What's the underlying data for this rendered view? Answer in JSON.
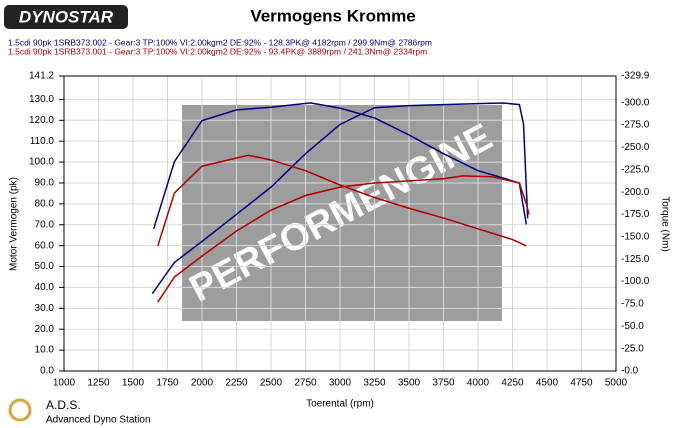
{
  "chart_data": {
    "type": "line",
    "title": "Vermogens Kromme",
    "brand": "DYNOSTAR",
    "runs": [
      {
        "label": "1.5cdi 90pk 1SRB373.002 - Gear:3 TP:100% VI:2.00kgm2 DE:92%   - 128.3PK@ 4182rpm / 299.9Nm@ 2786rpm",
        "color": "#000080"
      },
      {
        "label": "1.5cdi 90pk 1SRB373.001 - Gear:3 TP:100% VI:2.00kgm2 DE:92%   - 93.4PK@ 3889rpm / 241.3Nm@ 2334rpm",
        "color": "#b00000"
      }
    ],
    "watermark": "PERFORMENGINE",
    "x_label": "Toerental (rpm)",
    "y_label": "Motor Vermogen (pk)",
    "y2_label": "Torque (Nm)",
    "footer_title": "A.D.S.",
    "footer_subtitle": "Advanced Dyno Station",
    "xlim": [
      1000,
      5000
    ],
    "xticks": [
      1000,
      1250,
      1500,
      1750,
      2000,
      2250,
      2500,
      2750,
      3000,
      3250,
      3500,
      3750,
      4000,
      4250,
      4500,
      4750,
      5000
    ],
    "ylim": [
      0,
      141.2
    ],
    "yticks": [
      {
        "value": 0,
        "label": "0.0"
      },
      {
        "value": 10,
        "label": "10.0"
      },
      {
        "value": 20,
        "label": "20.0"
      },
      {
        "value": 30,
        "label": "30.0"
      },
      {
        "value": 40,
        "label": "40.0"
      },
      {
        "value": 50,
        "label": "50.0"
      },
      {
        "value": 60,
        "label": "60.0"
      },
      {
        "value": 70,
        "label": "70.0"
      },
      {
        "value": 80,
        "label": "80.0"
      },
      {
        "value": 90,
        "label": "90.0"
      },
      {
        "value": 100,
        "label": "100.0"
      },
      {
        "value": 110,
        "label": "110.0"
      },
      {
        "value": 120,
        "label": "120.0"
      },
      {
        "value": 130,
        "label": "130.0"
      },
      141.2
    ],
    "y2lim": [
      0,
      329.9
    ],
    "y2ticks": [
      {
        "value": 0,
        "label": "-0.0"
      },
      {
        "value": 25,
        "label": "-25.0"
      },
      {
        "value": 50,
        "label": "-50.0"
      },
      {
        "value": 75,
        "label": "-75.0"
      },
      {
        "value": 100,
        "label": "-100.0"
      },
      {
        "value": 125,
        "label": "-125.0"
      },
      {
        "value": 150,
        "label": "-150.0"
      },
      {
        "value": 175,
        "label": "-175.0"
      },
      {
        "value": 200,
        "label": "-200.0"
      },
      {
        "value": 225,
        "label": "-225.0"
      },
      {
        "value": 250,
        "label": "-250.0"
      },
      {
        "value": 275,
        "label": "-275.0"
      },
      {
        "value": 300,
        "label": "-300.0"
      },
      {
        "value": 329.9,
        "label": "-329.9"
      }
    ],
    "grid": true,
    "series": [
      {
        "color": "#000080",
        "axis": "y2",
        "x": [
          1650,
          1800,
          2000,
          2250,
          2500,
          2786,
          3000,
          3250,
          3500,
          3750,
          4000,
          4200,
          4300,
          4350
        ],
        "values": [
          159,
          234,
          280,
          292,
          295,
          299.9,
          294,
          283,
          264,
          243,
          224,
          215,
          210,
          164
        ]
      },
      {
        "color": "#000080",
        "x": [
          1640,
          1800,
          2000,
          2250,
          2500,
          2750,
          3000,
          3250,
          3500,
          3750,
          4000,
          4182,
          4300,
          4330,
          4360
        ],
        "values": [
          37,
          52,
          62,
          75,
          88,
          104,
          118,
          126,
          127,
          127.5,
          128,
          128.3,
          127.5,
          118,
          73
        ]
      },
      {
        "color": "#b00000",
        "axis": "y2",
        "x": [
          1680,
          1800,
          2000,
          2334,
          2500,
          2750,
          3000,
          3250,
          3500,
          3750,
          4000,
          4250,
          4350
        ],
        "values": [
          140,
          199,
          229,
          241.3,
          236,
          224,
          208,
          194,
          182,
          171,
          159,
          147,
          140
        ]
      },
      {
        "color": "#b00000",
        "x": [
          1680,
          1800,
          2000,
          2250,
          2500,
          2750,
          3000,
          3250,
          3500,
          3750,
          3889,
          4100,
          4300,
          4350,
          4370
        ],
        "values": [
          33,
          45,
          55,
          67,
          77,
          84,
          88,
          90,
          91,
          92,
          93.4,
          93,
          90,
          80,
          75
        ]
      }
    ]
  }
}
